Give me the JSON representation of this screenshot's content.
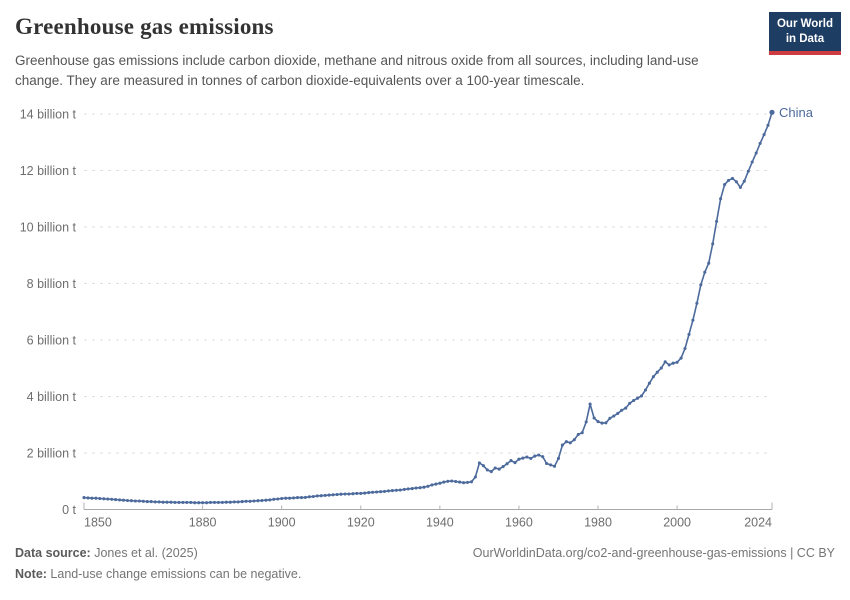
{
  "header": {
    "title": "Greenhouse gas emissions",
    "subtitle": "Greenhouse gas emissions include carbon dioxide, methane and nitrous oxide from all sources, including land-use change. They are measured in tonnes of carbon dioxide-equivalents over a 100-year timescale.",
    "logo": {
      "line1": "Our World",
      "line2": "in Data"
    }
  },
  "footer": {
    "source_label": "Data source:",
    "source_value": " Jones et al. (2025)",
    "url_text": "OurWorldinData.org/co2-and-greenhouse-gas-emissions | CC BY",
    "note_label": "Note:",
    "note_value": " Land-use change emissions can be negative."
  },
  "colors": {
    "line": "#4C6A9C",
    "grid": "#dddddd",
    "axis": "#a8a8a8",
    "tick": "#b3b3b3",
    "tick_text": "#6e6e6e",
    "logo_bg": "#1d3d63",
    "logo_red": "#cd3c41"
  },
  "chart_data": {
    "type": "line",
    "title": "Greenhouse gas emissions",
    "unit": "billion t CO2-equivalents",
    "grid": true,
    "legend_position": "end-of-line",
    "x_range": [
      1850,
      2024
    ],
    "y_range": [
      0,
      14
    ],
    "y_ticks": [
      {
        "value": 0,
        "label": "0 t"
      },
      {
        "value": 2,
        "label": "2 billion t"
      },
      {
        "value": 4,
        "label": "4 billion t"
      },
      {
        "value": 6,
        "label": "6 billion t"
      },
      {
        "value": 8,
        "label": "8 billion t"
      },
      {
        "value": 10,
        "label": "10 billion t"
      },
      {
        "value": 12,
        "label": "12 billion t"
      },
      {
        "value": 14,
        "label": "14 billion t"
      }
    ],
    "x_ticks": [
      {
        "year": 1850,
        "label": "1850",
        "align": "start"
      },
      {
        "year": 1880,
        "label": "1880",
        "align": "middle"
      },
      {
        "year": 1900,
        "label": "1900",
        "align": "middle"
      },
      {
        "year": 1920,
        "label": "1920",
        "align": "middle"
      },
      {
        "year": 1940,
        "label": "1940",
        "align": "middle"
      },
      {
        "year": 1960,
        "label": "1960",
        "align": "middle"
      },
      {
        "year": 1980,
        "label": "1980",
        "align": "middle"
      },
      {
        "year": 2000,
        "label": "2000",
        "align": "middle"
      },
      {
        "year": 2024,
        "label": "2024",
        "align": "end"
      }
    ],
    "series": [
      {
        "name": "China",
        "color": "#4C6A9C",
        "start_year": 1850,
        "end_year": 2024,
        "values": [
          0.42,
          0.41,
          0.4,
          0.4,
          0.39,
          0.38,
          0.37,
          0.36,
          0.35,
          0.34,
          0.33,
          0.32,
          0.31,
          0.3,
          0.3,
          0.29,
          0.28,
          0.28,
          0.27,
          0.27,
          0.26,
          0.26,
          0.26,
          0.25,
          0.25,
          0.25,
          0.25,
          0.25,
          0.24,
          0.24,
          0.24,
          0.24,
          0.25,
          0.25,
          0.25,
          0.25,
          0.26,
          0.26,
          0.27,
          0.27,
          0.28,
          0.29,
          0.29,
          0.3,
          0.31,
          0.32,
          0.33,
          0.34,
          0.36,
          0.37,
          0.39,
          0.4,
          0.4,
          0.41,
          0.42,
          0.42,
          0.43,
          0.45,
          0.46,
          0.48,
          0.49,
          0.5,
          0.51,
          0.52,
          0.53,
          0.54,
          0.55,
          0.55,
          0.56,
          0.57,
          0.57,
          0.58,
          0.6,
          0.61,
          0.62,
          0.63,
          0.64,
          0.66,
          0.67,
          0.68,
          0.69,
          0.71,
          0.73,
          0.74,
          0.76,
          0.77,
          0.79,
          0.82,
          0.87,
          0.9,
          0.93,
          0.97,
          1.0,
          1.01,
          0.99,
          0.97,
          0.95,
          0.96,
          0.98,
          1.15,
          1.65,
          1.55,
          1.4,
          1.34,
          1.47,
          1.43,
          1.52,
          1.62,
          1.73,
          1.66,
          1.78,
          1.82,
          1.86,
          1.81,
          1.89,
          1.93,
          1.87,
          1.63,
          1.58,
          1.53,
          1.81,
          2.28,
          2.4,
          2.36,
          2.47,
          2.66,
          2.72,
          3.1,
          3.73,
          3.24,
          3.11,
          3.06,
          3.07,
          3.23,
          3.31,
          3.4,
          3.51,
          3.59,
          3.76,
          3.86,
          3.94,
          4.02,
          4.23,
          4.47,
          4.7,
          4.86,
          5.01,
          5.23,
          5.12,
          5.18,
          5.21,
          5.36,
          5.7,
          6.2,
          6.7,
          7.3,
          7.95,
          8.4,
          8.72,
          9.4,
          10.2,
          11.0,
          11.5,
          11.65,
          11.72,
          11.6,
          11.4,
          11.62,
          11.97,
          12.3,
          12.62,
          12.96,
          13.27,
          13.6,
          14.06
        ]
      }
    ]
  }
}
